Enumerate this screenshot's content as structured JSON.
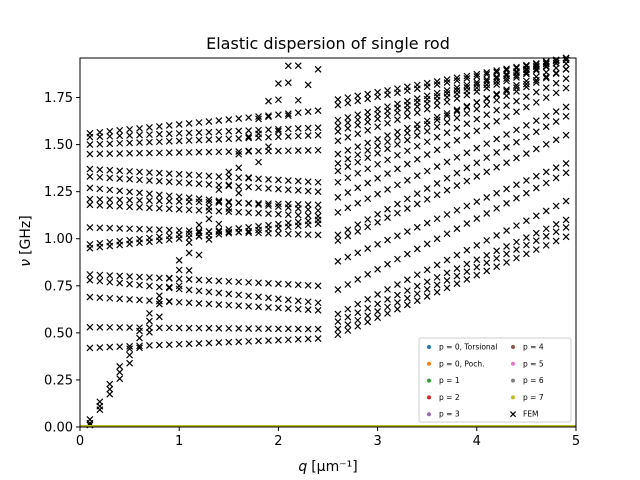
{
  "chart_data": {
    "type": "scatter",
    "title": "Elastic dispersion of single rod",
    "xlabel": "q [µm⁻¹]",
    "xlabel_var": "q",
    "xlabel_unit": "[µm⁻¹]",
    "ylabel": "ν [GHz]",
    "ylabel_var": "ν",
    "ylabel_unit": "[GHz]",
    "xlim": [
      0,
      5
    ],
    "ylim": [
      0,
      1.96
    ],
    "xticks": [
      0,
      1,
      2,
      3,
      4,
      5
    ],
    "xtick_labels": [
      "0",
      "1",
      "2",
      "3",
      "4",
      "5"
    ],
    "yticks": [
      0.0,
      0.25,
      0.5,
      0.75,
      1.0,
      1.25,
      1.5,
      1.75
    ],
    "ytick_labels": [
      "0.00",
      "0.25",
      "0.50",
      "0.75",
      "1.00",
      "1.25",
      "1.50",
      "1.75"
    ],
    "grid": false,
    "legend_position": "lower-right",
    "legend_columns": 2,
    "series": [
      {
        "name": "p = 0, Torsional",
        "color": "#1f77b4",
        "marker": "dot",
        "points": [
          [
            0,
            0.005
          ],
          [
            5,
            0.005
          ]
        ]
      },
      {
        "name": "p = 0, Poch.",
        "color": "#ff7f0e",
        "marker": "dot",
        "points": [
          [
            0,
            0.005
          ],
          [
            5,
            0.005
          ]
        ]
      },
      {
        "name": "p = 1",
        "color": "#2ca02c",
        "marker": "dot",
        "points": [
          [
            0,
            0.005
          ],
          [
            5,
            0.005
          ]
        ]
      },
      {
        "name": "p = 2",
        "color": "#d62728",
        "marker": "dot",
        "points": [
          [
            0,
            0.005
          ],
          [
            5,
            0.005
          ]
        ]
      },
      {
        "name": "p = 3",
        "color": "#9467bd",
        "marker": "dot",
        "points": [
          [
            0,
            0.005
          ],
          [
            5,
            0.005
          ]
        ]
      },
      {
        "name": "p = 4",
        "color": "#8c564b",
        "marker": "dot",
        "points": [
          [
            0,
            0.005
          ],
          [
            5,
            0.005
          ]
        ]
      },
      {
        "name": "p = 5",
        "color": "#e377c2",
        "marker": "dot",
        "points": [
          [
            0,
            0.005
          ],
          [
            5,
            0.005
          ]
        ]
      },
      {
        "name": "p = 6",
        "color": "#7f7f7f",
        "marker": "dot",
        "points": [
          [
            0,
            0.005
          ],
          [
            5,
            0.005
          ]
        ]
      },
      {
        "name": "p = 7",
        "color": "#bcbd22",
        "marker": "dot",
        "points": [
          [
            0,
            0.005
          ],
          [
            5,
            0.005
          ]
        ]
      },
      {
        "name": "FEM",
        "color": "#000000",
        "marker": "x",
        "q_values_left": [
          0.1,
          0.2,
          0.3,
          0.4,
          0.5,
          0.6,
          0.7,
          0.8,
          0.9,
          1.0,
          1.1,
          1.2,
          1.3,
          1.4,
          1.5,
          1.6,
          1.7,
          1.8,
          1.9,
          2.0,
          2.1,
          2.2,
          2.3,
          2.4
        ],
        "q_values_right": [
          2.6,
          2.7,
          2.8,
          2.9,
          3.0,
          3.1,
          3.2,
          3.3,
          3.4,
          3.5,
          3.6,
          3.7,
          3.8,
          3.9,
          4.0,
          4.1,
          4.2,
          4.3,
          4.4,
          4.5,
          4.6,
          4.7,
          4.8,
          4.9
        ],
        "branches": [
          {
            "left": [
              0.01,
              1.9
            ],
            "right": [
              0.49,
              1.01
            ]
          },
          {
            "left": [
              0.02,
              2.1
            ],
            "right": [
              0.52,
              1.06
            ]
          },
          {
            "left": [
              0.04,
              2.2
            ],
            "right": [
              0.56,
              1.1
            ]
          },
          {
            "left": [
              0.42,
              0.47
            ],
            "right": [
              0.6,
              1.2
            ]
          },
          {
            "left": [
              0.53,
              0.52
            ],
            "right": [
              0.73,
              1.35
            ]
          },
          {
            "left": [
              0.69,
              0.62
            ],
            "right": [
              0.88,
              1.4
            ]
          },
          {
            "left": [
              0.78,
              0.66
            ],
            "right": [
              0.99,
              1.55
            ]
          },
          {
            "left": [
              0.81,
              0.75
            ],
            "right": [
              1.02,
              1.65
            ]
          },
          {
            "left": [
              0.95,
              1.08
            ],
            "right": [
              1.14,
              1.7
            ]
          },
          {
            "left": [
              0.97,
              1.1
            ],
            "right": [
              1.22,
              1.8
            ]
          },
          {
            "left": [
              1.06,
              1.02
            ],
            "right": [
              1.3,
              1.85
            ]
          },
          {
            "left": [
              1.18,
              1.12
            ],
            "right": [
              1.36,
              1.9
            ]
          },
          {
            "left": [
              1.21,
              1.18
            ],
            "right": [
              1.4,
              1.93
            ]
          },
          {
            "left": [
              1.27,
              1.15
            ],
            "right": [
              1.45,
              1.9
            ]
          },
          {
            "left": [
              1.33,
              1.25
            ],
            "right": [
              1.52,
              1.95
            ]
          },
          {
            "left": [
              1.37,
              1.3
            ],
            "right": [
              1.57,
              1.95
            ]
          },
          {
            "left": [
              1.45,
              1.47
            ],
            "right": [
              1.6,
              1.96
            ]
          },
          {
            "left": [
              1.5,
              1.55
            ],
            "right": [
              1.63,
              1.96
            ]
          },
          {
            "left": [
              1.54,
              1.59
            ],
            "right": [
              1.71,
              1.96
            ]
          },
          {
            "left": [
              1.56,
              1.68
            ],
            "right": [
              1.74,
              1.96
            ]
          }
        ]
      }
    ]
  }
}
